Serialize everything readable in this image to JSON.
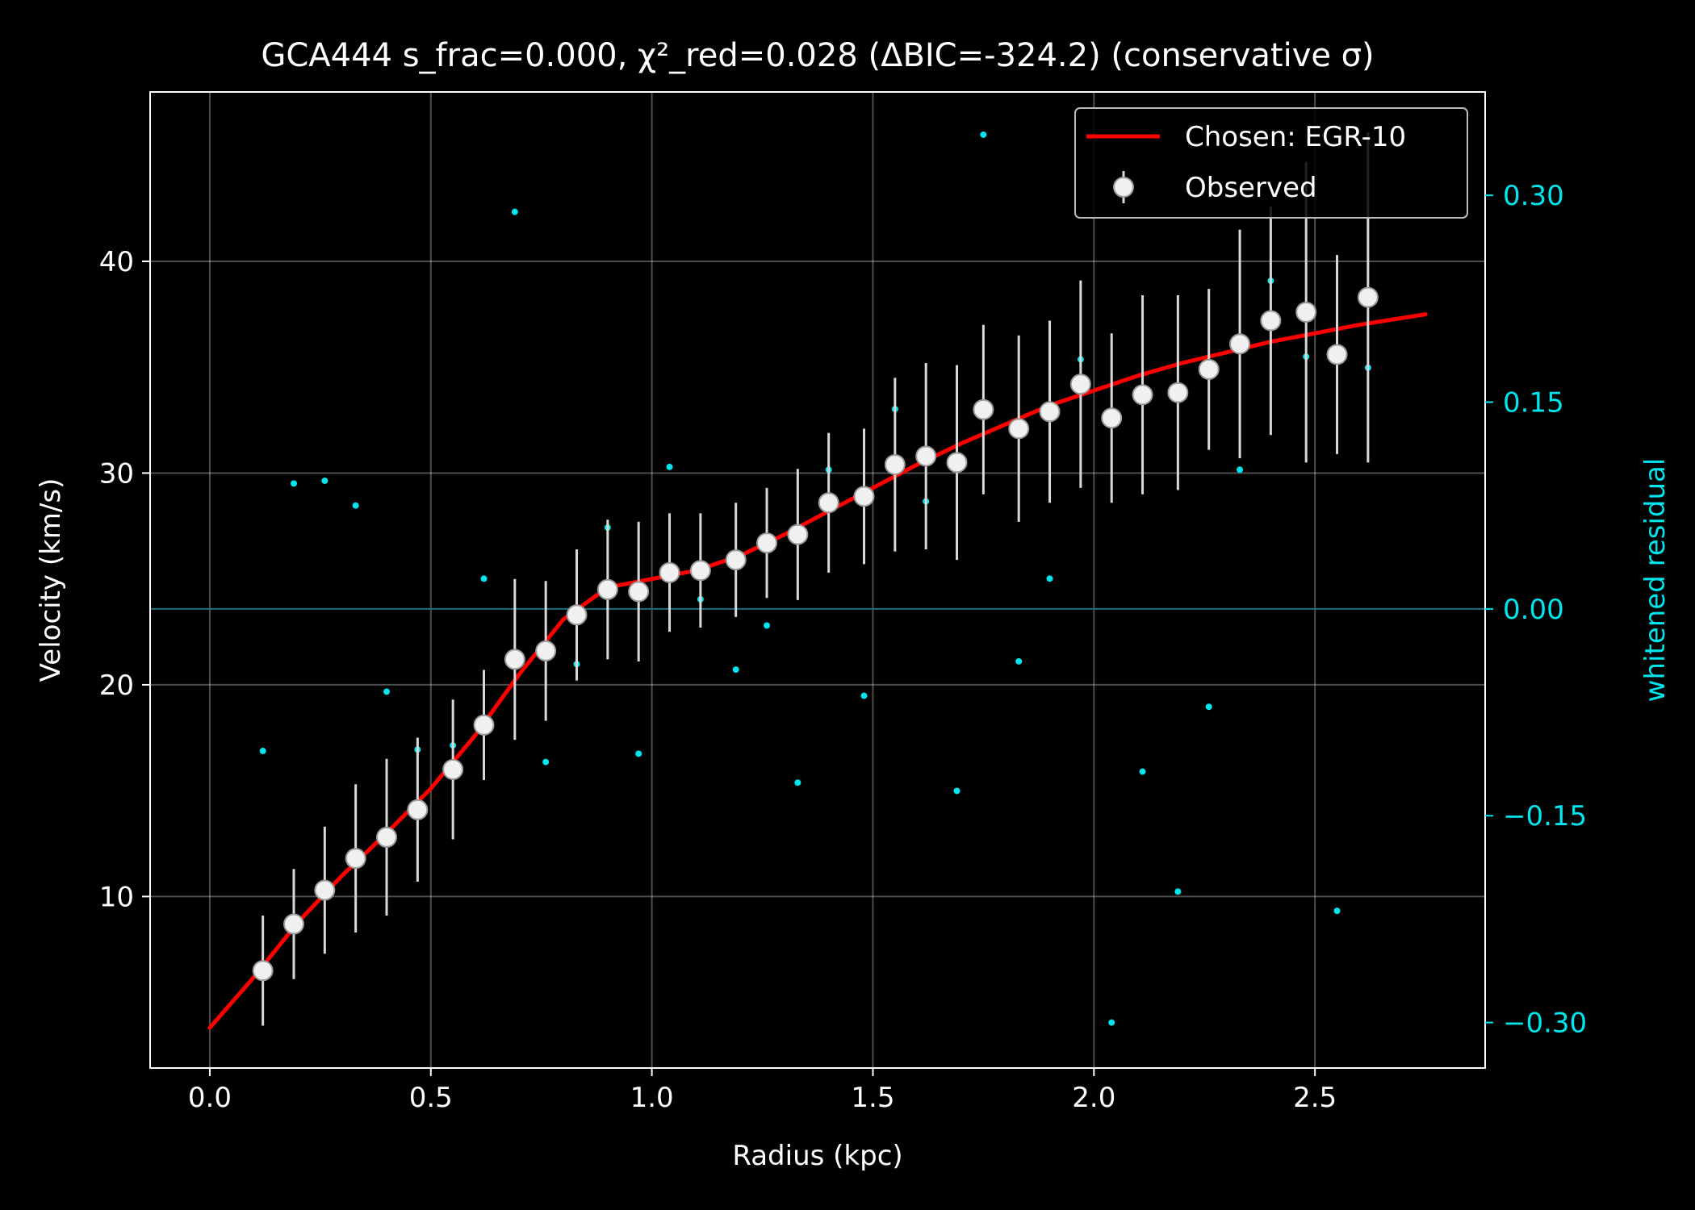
{
  "chart_data": {
    "type": "scatter",
    "title": "GCA444  s_frac=0.000, χ²_red=0.028  (ΔBIC=-324.2) (conservative σ)",
    "xlabel": "Radius (kpc)",
    "ylabel": "Velocity (km/s)",
    "y2label": "whitened residual",
    "xlim": [
      -0.135,
      2.885
    ],
    "ylim": [
      1.9,
      48.0
    ],
    "y2lim": [
      -0.333,
      0.375
    ],
    "x_ticks": [
      0.0,
      0.5,
      1.0,
      1.5,
      2.0,
      2.5
    ],
    "x_tick_labels": [
      "0.0",
      "0.5",
      "1.0",
      "1.5",
      "2.0",
      "2.5"
    ],
    "y_ticks": [
      10,
      20,
      30,
      40
    ],
    "y_tick_labels": [
      "10",
      "20",
      "30",
      "40"
    ],
    "y2_ticks": [
      0.3,
      0.15,
      0.0,
      -0.15,
      -0.3
    ],
    "y2_tick_labels": [
      "0.30",
      "0.15",
      "0.00",
      "−0.15",
      "−0.30"
    ],
    "grid": true,
    "legend_position": "top-right",
    "legend": {
      "fit_label": "Chosen: EGR-10",
      "obs_label": "Observed"
    },
    "colors": {
      "background": "#000000",
      "foreground": "#ffffff",
      "fit": "#ff0000",
      "observed": "#f0f0f0",
      "residual": "#00e5ee",
      "zero_line": "#1f6f78"
    },
    "series": [
      {
        "name": "Chosen: EGR-10",
        "kind": "line",
        "x": [
          0.0,
          0.1,
          0.2,
          0.3,
          0.4,
          0.5,
          0.6,
          0.7,
          0.8,
          0.9,
          1.0,
          1.1,
          1.2,
          1.3,
          1.4,
          1.5,
          1.6,
          1.7,
          1.8,
          1.9,
          2.0,
          2.1,
          2.2,
          2.3,
          2.4,
          2.5,
          2.6,
          2.75
        ],
        "y": [
          3.8,
          6.2,
          8.8,
          11.0,
          13.0,
          15.1,
          17.6,
          20.5,
          23.1,
          24.6,
          25.0,
          25.4,
          26.1,
          27.1,
          28.2,
          29.3,
          30.4,
          31.4,
          32.3,
          33.2,
          33.9,
          34.6,
          35.2,
          35.7,
          36.2,
          36.6,
          37.0,
          37.5
        ]
      },
      {
        "name": "Observed",
        "kind": "errorbar",
        "x": [
          0.12,
          0.19,
          0.26,
          0.33,
          0.4,
          0.47,
          0.55,
          0.62,
          0.69,
          0.76,
          0.83,
          0.9,
          0.97,
          1.04,
          1.11,
          1.19,
          1.26,
          1.33,
          1.4,
          1.48,
          1.55,
          1.62,
          1.69,
          1.75,
          1.83,
          1.9,
          1.97,
          2.04,
          2.11,
          2.19,
          2.26,
          2.33,
          2.4,
          2.48,
          2.55,
          2.62
        ],
        "y": [
          6.5,
          8.7,
          10.3,
          11.8,
          12.8,
          14.1,
          16.0,
          18.1,
          21.2,
          21.6,
          23.3,
          24.5,
          24.4,
          25.3,
          25.4,
          25.9,
          26.7,
          27.1,
          28.6,
          28.9,
          30.4,
          30.8,
          30.5,
          33.0,
          32.1,
          32.9,
          34.2,
          32.6,
          33.7,
          33.8,
          34.9,
          36.1,
          37.2,
          37.6,
          35.6,
          38.3
        ],
        "yerr": [
          2.6,
          2.6,
          3.0,
          3.5,
          3.7,
          3.4,
          3.3,
          2.6,
          3.8,
          3.3,
          3.1,
          3.3,
          3.3,
          2.8,
          2.7,
          2.7,
          2.6,
          3.1,
          3.3,
          3.2,
          4.1,
          4.4,
          4.6,
          4.0,
          4.4,
          4.3,
          4.9,
          4.0,
          4.7,
          4.6,
          3.8,
          5.4,
          5.4,
          7.1,
          4.7,
          7.8
        ]
      },
      {
        "name": "whitened residual",
        "kind": "points",
        "axis": "y2",
        "x": [
          0.12,
          0.19,
          0.26,
          0.33,
          0.4,
          0.47,
          0.55,
          0.62,
          0.69,
          0.76,
          0.83,
          0.9,
          0.97,
          1.04,
          1.11,
          1.19,
          1.26,
          1.33,
          1.4,
          1.48,
          1.55,
          1.62,
          1.69,
          1.75,
          1.83,
          1.9,
          1.97,
          2.04,
          2.11,
          2.19,
          2.26,
          2.33,
          2.4,
          2.48,
          2.55,
          2.62
        ],
        "y": [
          -0.103,
          0.091,
          0.093,
          0.075,
          -0.06,
          -0.102,
          -0.099,
          0.022,
          0.288,
          -0.111,
          -0.04,
          0.059,
          -0.105,
          0.103,
          0.007,
          -0.044,
          -0.012,
          -0.126,
          0.101,
          -0.063,
          0.145,
          0.078,
          -0.132,
          0.344,
          -0.038,
          0.022,
          0.181,
          -0.3,
          -0.118,
          -0.205,
          -0.071,
          0.101,
          0.238,
          0.183,
          -0.219,
          0.175
        ]
      }
    ]
  }
}
